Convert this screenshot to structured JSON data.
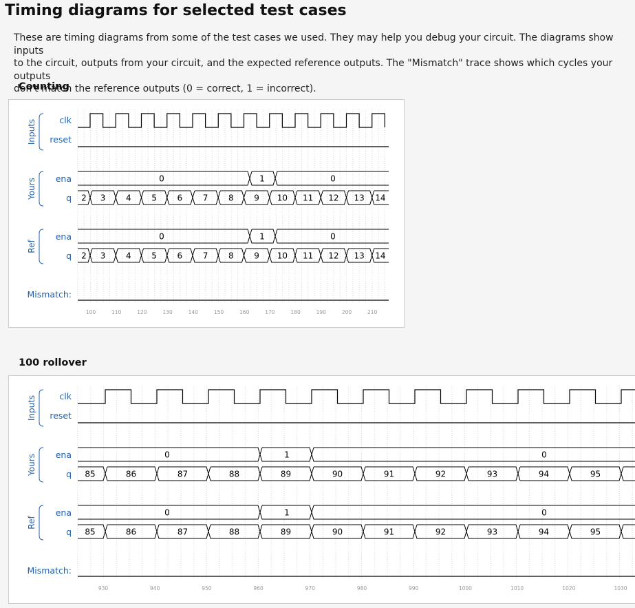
{
  "header": {
    "title": "Timing diagrams for selected test cases",
    "intro_lines": [
      "These are timing diagrams from some of the test cases we used. They may help you debug your circuit. The diagrams show inputs",
      "to the circuit, outputs from your circuit, and the expected reference outputs. The \"Mismatch\" trace shows which cycles your outputs",
      "don't match the reference outputs (0 = correct, 1 = incorrect)."
    ]
  },
  "diagrams": [
    {
      "title": "Counting",
      "group_labels": {
        "inputs": "Inputs",
        "yours": "Yours",
        "ref": "Ref"
      },
      "signal_labels": {
        "clk": "clk",
        "reset": "reset",
        "ena": "ena",
        "q": "q",
        "mismatch": "Mismatch:"
      },
      "time_ticks": [
        "100",
        "110",
        "120",
        "130",
        "140",
        "150",
        "160",
        "170",
        "180",
        "190",
        "200",
        "210"
      ],
      "yours_ena": [
        {
          "label": "0"
        },
        {
          "label": "1"
        },
        {
          "label": "0"
        }
      ],
      "yours_q": [
        {
          "label": "2"
        },
        {
          "label": "3"
        },
        {
          "label": "4"
        },
        {
          "label": "5"
        },
        {
          "label": "6"
        },
        {
          "label": "7"
        },
        {
          "label": "8"
        },
        {
          "label": "9"
        },
        {
          "label": "10"
        },
        {
          "label": "11"
        },
        {
          "label": "12"
        },
        {
          "label": "13"
        },
        {
          "label": "14"
        }
      ],
      "ref_ena": [
        {
          "label": "0"
        },
        {
          "label": "1"
        },
        {
          "label": "0"
        }
      ],
      "ref_q": [
        {
          "label": "2"
        },
        {
          "label": "3"
        },
        {
          "label": "4"
        },
        {
          "label": "5"
        },
        {
          "label": "6"
        },
        {
          "label": "7"
        },
        {
          "label": "8"
        },
        {
          "label": "9"
        },
        {
          "label": "10"
        },
        {
          "label": "11"
        },
        {
          "label": "12"
        },
        {
          "label": "13"
        },
        {
          "label": "14"
        }
      ]
    },
    {
      "title": "100 rollover",
      "group_labels": {
        "inputs": "Inputs",
        "yours": "Yours",
        "ref": "Ref"
      },
      "signal_labels": {
        "clk": "clk",
        "reset": "reset",
        "ena": "ena",
        "q": "q",
        "mismatch": "Mismatch:"
      },
      "time_ticks": [
        "930",
        "940",
        "950",
        "960",
        "970",
        "980",
        "990",
        "1000",
        "1010",
        "1020",
        "1030"
      ],
      "yours_ena": [
        {
          "label": "0"
        },
        {
          "label": "1"
        },
        {
          "label": "0"
        }
      ],
      "yours_q": [
        {
          "label": "85"
        },
        {
          "label": "86"
        },
        {
          "label": "87"
        },
        {
          "label": "88"
        },
        {
          "label": "89"
        },
        {
          "label": "90"
        },
        {
          "label": "91"
        },
        {
          "label": "92"
        },
        {
          "label": "93"
        },
        {
          "label": "94"
        },
        {
          "label": "95"
        },
        {
          "label": ""
        }
      ],
      "ref_ena": [
        {
          "label": "0"
        },
        {
          "label": "1"
        },
        {
          "label": "0"
        }
      ],
      "ref_q": [
        {
          "label": "85"
        },
        {
          "label": "86"
        },
        {
          "label": "87"
        },
        {
          "label": "88"
        },
        {
          "label": "89"
        },
        {
          "label": "90"
        },
        {
          "label": "91"
        },
        {
          "label": "92"
        },
        {
          "label": "93"
        },
        {
          "label": "94"
        },
        {
          "label": "95"
        },
        {
          "label": ""
        }
      ]
    }
  ]
}
